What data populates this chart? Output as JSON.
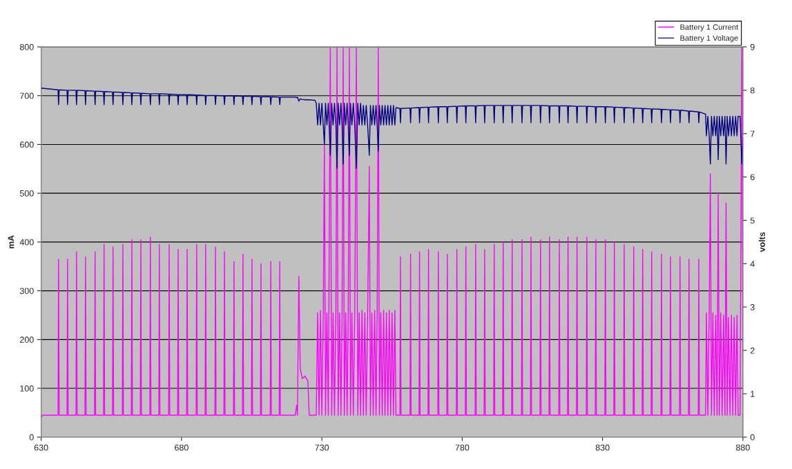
{
  "chart_data": {
    "type": "line",
    "ylabel": "mA",
    "y2label": "volts",
    "xlim": [
      630,
      880
    ],
    "xticks": [
      630,
      680,
      730,
      780,
      830,
      880
    ],
    "ylim": [
      0,
      800
    ],
    "yticks": [
      0,
      100,
      200,
      300,
      400,
      500,
      600,
      700,
      800
    ],
    "y2lim": [
      0,
      9
    ],
    "y2ticks": [
      0,
      1,
      2,
      3,
      4,
      5,
      6,
      7,
      8,
      9
    ],
    "grid": "y",
    "legend": "top right",
    "line_style": "solid",
    "marker": "none",
    "series": [
      {
        "name": "Battery 1 Current",
        "color": "#ff00ff",
        "x": [
          630,
          630.5,
          636.0,
          636.2,
          636.4,
          639.2,
          639.4,
          639.6,
          642.4,
          642.6,
          642.8,
          645.6,
          645.8,
          646.0,
          649.0,
          649.2,
          649.4,
          652.2,
          652.4,
          652.6,
          655.4,
          655.6,
          655.8,
          658.9,
          659.1,
          659.3,
          662.1,
          662.3,
          662.5,
          665.3,
          665.5,
          665.7,
          668.7,
          668.9,
          669.1,
          671.9,
          672.1,
          672.3,
          675.4,
          675.6,
          675.8,
          678.6,
          678.8,
          679.0,
          681.8,
          682.0,
          682.2,
          685.2,
          685.4,
          685.6,
          688.4,
          688.6,
          688.8,
          691.9,
          692.1,
          692.3,
          695.1,
          695.3,
          695.5,
          698.5,
          698.7,
          698.9,
          701.7,
          701.9,
          702.1,
          704.9,
          705.1,
          705.3,
          708.1,
          708.3,
          708.5,
          711.6,
          711.8,
          712.0,
          714.8,
          715.0,
          715.2,
          720.5,
          721,
          721.3,
          721.8,
          722.3,
          723,
          724,
          725,
          725.5,
          727.5,
          728,
          728.5,
          729,
          729.5,
          730,
          730.5,
          730.9,
          731.3,
          731.8,
          732.3,
          733,
          733.5,
          734,
          734.5,
          735,
          735.4,
          735.8,
          736.3,
          736.8,
          737.2,
          737.6,
          738,
          738.5,
          739,
          739.4,
          739.8,
          740.2,
          740.7,
          741.2,
          741.7,
          742.3,
          742.8,
          743.3,
          743.8,
          744.3,
          744.8,
          745.3,
          745.8,
          746.3,
          746.9,
          747.3,
          747.8,
          748.3,
          748.8,
          749.3,
          749.7,
          750.1,
          750.5,
          751,
          751.5,
          752,
          752.5,
          753,
          753.5,
          754,
          754.5,
          755,
          755.5,
          756,
          756.4,
          757.8,
          758.0,
          758.2,
          761.4,
          761.6,
          761.8,
          764.6,
          764.8,
          765.0,
          767.8,
          768.0,
          768.2,
          771.3,
          771.5,
          771.7,
          774.5,
          774.7,
          774.9,
          777.9,
          778.1,
          778.3,
          781.1,
          781.3,
          781.5,
          784.6,
          784.8,
          785.0,
          787.8,
          788.0,
          788.2,
          791.2,
          791.4,
          791.6,
          794.4,
          794.6,
          794.8,
          797.6,
          797.8,
          798.0,
          801.1,
          801.3,
          801.5,
          804.3,
          804.5,
          804.7,
          807.7,
          807.9,
          808.1,
          810.9,
          811.1,
          811.3,
          814.4,
          814.6,
          814.8,
          817.5,
          817.7,
          817.9,
          820.7,
          820.9,
          821.1,
          824.2,
          824.4,
          824.6,
          827.4,
          827.6,
          827.8,
          830.8,
          831.0,
          831.2,
          834.0,
          834.2,
          834.4,
          837.5,
          837.7,
          837.9,
          840.9,
          841.1,
          841.3,
          844.1,
          844.3,
          844.5,
          847.3,
          847.5,
          847.7,
          850.8,
          851.0,
          851.2,
          854.0,
          854.2,
          854.4,
          857.4,
          857.6,
          857.8,
          860.6,
          860.8,
          861.0,
          864.1,
          864.3,
          864.5,
          866.7,
          867,
          867.5,
          868,
          868.4,
          868.8,
          869.3,
          869.8,
          870.3,
          870.8,
          871.2,
          871.6,
          872.1,
          872.6,
          873.1,
          873.6,
          874,
          874.4,
          874.9,
          875.4,
          875.9,
          876.4,
          876.9,
          877.4,
          877.9,
          878.3,
          879,
          879.6,
          880
        ],
        "values": [
          40,
          45,
          45,
          365,
          45,
          45,
          365,
          45,
          45,
          380,
          45,
          45,
          370,
          45,
          45,
          380,
          45,
          45,
          395,
          45,
          45,
          390,
          45,
          45,
          395,
          45,
          45,
          405,
          45,
          45,
          405,
          45,
          45,
          410,
          45,
          45,
          395,
          45,
          45,
          395,
          45,
          45,
          385,
          45,
          45,
          385,
          45,
          45,
          395,
          45,
          45,
          395,
          45,
          45,
          390,
          45,
          45,
          380,
          45,
          45,
          360,
          45,
          45,
          375,
          45,
          45,
          365,
          45,
          45,
          355,
          45,
          45,
          360,
          45,
          45,
          360,
          45,
          45,
          65,
          45,
          330,
          140,
          120,
          125,
          115,
          45,
          45,
          45,
          255,
          45,
          260,
          45,
          250,
          600,
          45,
          255,
          45,
          800,
          45,
          255,
          45,
          260,
          800,
          45,
          255,
          45,
          250,
          800,
          45,
          255,
          45,
          260,
          800,
          45,
          255,
          45,
          250,
          800,
          45,
          255,
          45,
          260,
          45,
          255,
          45,
          250,
          555,
          45,
          255,
          45,
          260,
          45,
          255,
          800,
          45,
          255,
          45,
          260,
          45,
          255,
          45,
          260,
          45,
          255,
          45,
          260,
          45,
          45,
          370,
          45,
          45,
          375,
          45,
          45,
          380,
          45,
          45,
          385,
          45,
          45,
          380,
          45,
          45,
          375,
          45,
          45,
          385,
          45,
          45,
          390,
          45,
          45,
          395,
          45,
          45,
          385,
          45,
          45,
          395,
          45,
          45,
          400,
          45,
          45,
          405,
          45,
          45,
          405,
          45,
          45,
          410,
          45,
          45,
          405,
          45,
          45,
          410,
          45,
          45,
          405,
          45,
          45,
          410,
          45,
          45,
          410,
          45,
          45,
          410,
          45,
          45,
          405,
          45,
          45,
          405,
          45,
          45,
          400,
          45,
          45,
          395,
          45,
          45,
          390,
          45,
          45,
          385,
          45,
          45,
          380,
          45,
          45,
          375,
          45,
          45,
          370,
          45,
          45,
          370,
          45,
          45,
          365,
          45,
          45,
          365,
          45,
          45,
          255,
          45,
          260,
          540,
          45,
          255,
          45,
          250,
          45,
          500,
          45,
          255,
          45,
          250,
          45,
          480,
          45,
          245,
          45,
          250,
          45,
          245,
          45,
          250,
          45,
          45,
          800,
          150
        ]
      },
      {
        "name": "Battery 1 Voltage",
        "color": "#000080",
        "axis": "y2",
        "x": [
          630,
          636.0,
          636.2,
          636.4,
          639.2,
          639.4,
          639.6,
          642.4,
          642.6,
          642.8,
          645.6,
          645.8,
          646.0,
          649.0,
          649.2,
          649.4,
          652.2,
          652.4,
          652.6,
          655.4,
          655.6,
          655.8,
          658.9,
          659.1,
          659.3,
          662.1,
          662.3,
          662.5,
          665.3,
          665.5,
          665.7,
          668.7,
          668.9,
          669.1,
          671.9,
          672.1,
          672.3,
          675.4,
          675.6,
          675.8,
          678.6,
          678.8,
          679.0,
          681.8,
          682.0,
          682.2,
          685.2,
          685.4,
          685.6,
          688.4,
          688.6,
          688.8,
          691.9,
          692.1,
          692.3,
          695.1,
          695.3,
          695.5,
          698.5,
          698.7,
          698.9,
          701.7,
          701.9,
          702.1,
          704.9,
          705.1,
          705.3,
          708.1,
          708.3,
          708.5,
          711.6,
          711.8,
          712.0,
          714.8,
          715.0,
          715.2,
          720.5,
          721,
          721.3,
          721.8,
          722.3,
          723,
          724,
          725,
          725.5,
          727.5,
          728,
          728.5,
          729,
          729.5,
          730,
          730.5,
          730.9,
          731.3,
          731.8,
          732.3,
          733,
          733.5,
          734,
          734.5,
          735,
          735.4,
          735.8,
          736.3,
          736.8,
          737.2,
          737.6,
          738,
          738.5,
          739,
          739.4,
          739.8,
          740.2,
          740.7,
          741.2,
          741.7,
          742.3,
          742.8,
          743.3,
          743.8,
          744.3,
          744.8,
          745.3,
          745.8,
          746.3,
          746.9,
          747.3,
          747.8,
          748.3,
          748.8,
          749.3,
          749.7,
          750.1,
          750.5,
          751,
          751.5,
          752,
          752.5,
          753,
          753.5,
          754,
          754.5,
          755,
          755.5,
          756,
          756.4,
          757.8,
          758.0,
          758.2,
          761.4,
          761.6,
          761.8,
          764.6,
          764.8,
          765.0,
          767.8,
          768.0,
          768.2,
          771.3,
          771.5,
          771.7,
          774.5,
          774.7,
          774.9,
          777.9,
          778.1,
          778.3,
          781.1,
          781.3,
          781.5,
          784.6,
          784.8,
          785.0,
          787.8,
          788.0,
          788.2,
          791.2,
          791.4,
          791.6,
          794.4,
          794.6,
          794.8,
          797.6,
          797.8,
          798.0,
          801.1,
          801.3,
          801.5,
          804.3,
          804.5,
          804.7,
          807.7,
          807.9,
          808.1,
          810.9,
          811.1,
          811.3,
          814.4,
          814.6,
          814.8,
          817.5,
          817.7,
          817.9,
          820.7,
          820.9,
          821.1,
          824.2,
          824.4,
          824.6,
          827.4,
          827.6,
          827.8,
          830.8,
          831.0,
          831.2,
          834.0,
          834.2,
          834.4,
          837.5,
          837.7,
          837.9,
          840.9,
          841.1,
          841.3,
          844.1,
          844.3,
          844.5,
          847.3,
          847.5,
          847.7,
          850.8,
          851.0,
          851.2,
          854.0,
          854.2,
          854.4,
          857.4,
          857.6,
          857.8,
          860.6,
          860.8,
          861.0,
          864.1,
          864.3,
          864.5,
          866.7,
          867,
          867.5,
          868,
          868.4,
          868.8,
          869.3,
          869.8,
          870.3,
          870.8,
          871.2,
          871.6,
          872.1,
          872.6,
          873.1,
          873.6,
          874,
          874.4,
          874.9,
          875.4,
          875.9,
          876.4,
          876.9,
          877.4,
          877.9,
          878.3,
          879,
          879.6,
          880
        ],
        "values": [
          8.05,
          8.01,
          7.67,
          8.01,
          8.0,
          7.67,
          8.0,
          8.0,
          7.67,
          8.0,
          7.99,
          7.67,
          7.99,
          7.98,
          7.67,
          7.98,
          7.97,
          7.67,
          7.97,
          7.96,
          7.67,
          7.96,
          7.95,
          7.67,
          7.95,
          7.94,
          7.67,
          7.94,
          7.93,
          7.67,
          7.93,
          7.92,
          7.67,
          7.92,
          7.92,
          7.67,
          7.92,
          7.91,
          7.67,
          7.91,
          7.9,
          7.67,
          7.9,
          7.9,
          7.67,
          7.9,
          7.89,
          7.67,
          7.89,
          7.88,
          7.67,
          7.88,
          7.88,
          7.67,
          7.88,
          7.87,
          7.67,
          7.87,
          7.87,
          7.67,
          7.87,
          7.86,
          7.67,
          7.86,
          7.86,
          7.67,
          7.86,
          7.85,
          7.67,
          7.85,
          7.85,
          7.67,
          7.85,
          7.84,
          7.67,
          7.84,
          7.84,
          7.83,
          7.84,
          7.75,
          7.8,
          7.79,
          7.78,
          7.78,
          7.78,
          7.77,
          7.7,
          7.2,
          7.7,
          7.2,
          7.7,
          7.2,
          6.75,
          7.7,
          7.2,
          7.7,
          6.5,
          7.7,
          7.2,
          7.7,
          7.2,
          6.2,
          7.7,
          7.2,
          7.7,
          7.2,
          6.3,
          7.7,
          7.2,
          7.7,
          7.2,
          6.5,
          7.7,
          7.2,
          7.7,
          7.2,
          6.2,
          7.7,
          7.2,
          7.7,
          7.2,
          7.65,
          7.2,
          7.65,
          7.2,
          6.5,
          7.65,
          7.2,
          7.65,
          7.2,
          7.65,
          7.2,
          6.6,
          7.65,
          7.2,
          7.65,
          7.2,
          7.65,
          7.2,
          7.65,
          7.2,
          7.65,
          7.2,
          7.65,
          7.2,
          7.6,
          7.58,
          7.25,
          7.58,
          7.59,
          7.25,
          7.59,
          7.6,
          7.25,
          7.6,
          7.61,
          7.25,
          7.61,
          7.62,
          7.25,
          7.62,
          7.62,
          7.25,
          7.62,
          7.63,
          7.25,
          7.63,
          7.64,
          7.25,
          7.64,
          7.64,
          7.25,
          7.64,
          7.65,
          7.25,
          7.65,
          7.65,
          7.25,
          7.65,
          7.65,
          7.25,
          7.65,
          7.65,
          7.25,
          7.65,
          7.65,
          7.25,
          7.65,
          7.65,
          7.25,
          7.65,
          7.65,
          7.25,
          7.65,
          7.64,
          7.25,
          7.64,
          7.64,
          7.25,
          7.64,
          7.64,
          7.25,
          7.64,
          7.63,
          7.25,
          7.63,
          7.63,
          7.25,
          7.63,
          7.62,
          7.25,
          7.62,
          7.62,
          7.25,
          7.62,
          7.61,
          7.25,
          7.61,
          7.6,
          7.25,
          7.6,
          7.59,
          7.25,
          7.59,
          7.58,
          7.25,
          7.58,
          7.57,
          7.25,
          7.57,
          7.56,
          7.25,
          7.56,
          7.55,
          7.25,
          7.55,
          7.54,
          7.25,
          7.54,
          7.52,
          7.25,
          7.52,
          7.5,
          7.25,
          7.5,
          7.45,
          6.95,
          7.4,
          6.95,
          6.3,
          7.4,
          6.95,
          7.4,
          6.95,
          7.4,
          6.4,
          7.4,
          6.95,
          7.4,
          6.95,
          7.4,
          6.3,
          7.4,
          6.95,
          7.4,
          6.95,
          7.4,
          6.95,
          7.4,
          6.95,
          7.4,
          7.4,
          6.3,
          6.9
        ]
      }
    ]
  }
}
